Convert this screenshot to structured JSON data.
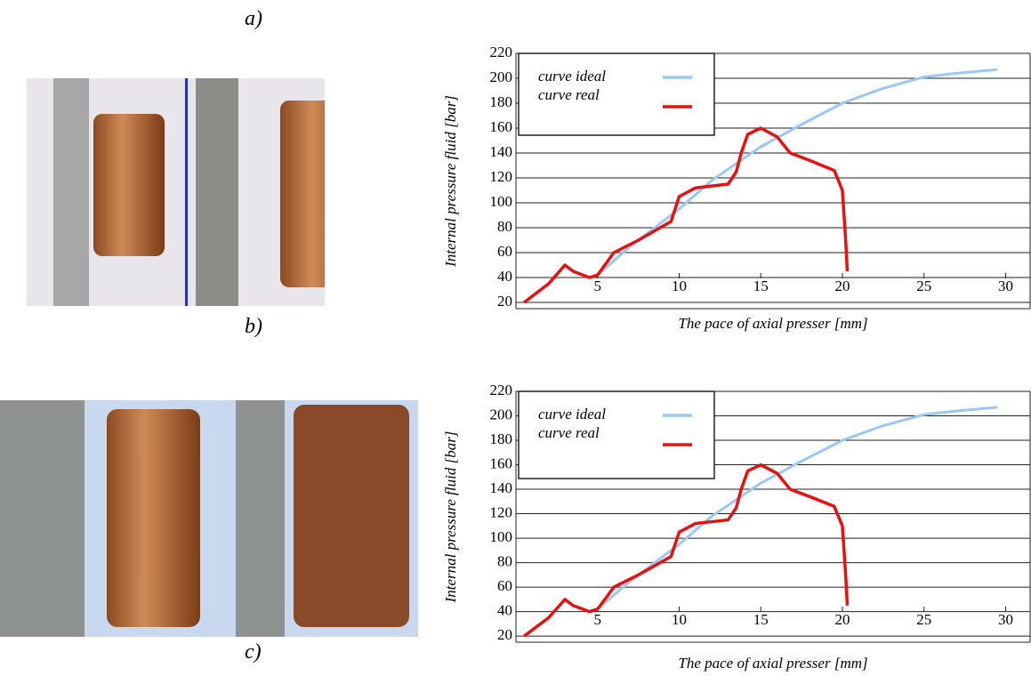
{
  "labels": [
    "a)",
    "b)",
    "c)"
  ],
  "chart_data": [
    {
      "type": "line",
      "ylabel": "Internal pressure fluid [bar]",
      "xlabel": "The pace of axial presser [mm]",
      "xlim": [
        0,
        31.5
      ],
      "ylim": [
        15,
        220
      ],
      "xticks": [
        5,
        10,
        15,
        20,
        25,
        30
      ],
      "yticks": [
        20,
        40,
        60,
        80,
        100,
        120,
        140,
        160,
        180,
        200,
        220
      ],
      "grid": true,
      "legend": "upper-left",
      "series": [
        {
          "name": "curve ideal",
          "color": "#99c8f5",
          "x": [
            5,
            7,
            10,
            12,
            15,
            17.5,
            20,
            22.5,
            25,
            27,
            29.5
          ],
          "values": [
            42,
            65,
            95,
            118,
            145,
            163,
            180,
            192,
            201,
            204,
            207
          ]
        },
        {
          "name": "curve real",
          "color": "#e81010",
          "x": [
            0.5,
            2,
            3,
            3.5,
            4.5,
            5,
            6,
            7.5,
            9.5,
            10,
            11,
            13,
            13.5,
            13.8,
            14.2,
            15,
            16,
            16.8,
            18,
            19.5,
            20,
            20.2,
            20.3
          ],
          "values": [
            20,
            35,
            50,
            45,
            40,
            42,
            60,
            70,
            85,
            105,
            112,
            115,
            125,
            140,
            155,
            160,
            153,
            140,
            134,
            126,
            110,
            70,
            45
          ]
        }
      ]
    },
    {
      "type": "line",
      "ylabel": "Internal pressure fluid [bar]",
      "xlabel": "The pace of axial presser [mm]",
      "xlim": [
        0,
        31.5
      ],
      "ylim": [
        15,
        220
      ],
      "xticks": [
        5,
        10,
        15,
        20,
        25,
        30
      ],
      "yticks": [
        20,
        40,
        60,
        80,
        100,
        120,
        140,
        160,
        180,
        200,
        220
      ],
      "grid": true,
      "legend": "upper-left",
      "series": [
        {
          "name": "curve ideal",
          "color": "#99c8f5",
          "x": [
            5,
            7,
            10,
            12,
            15,
            17.5,
            20,
            22.5,
            25,
            27,
            29.5
          ],
          "values": [
            42,
            65,
            95,
            118,
            145,
            163,
            180,
            192,
            201,
            204,
            207
          ]
        },
        {
          "name": "curve real",
          "color": "#e81010",
          "x": [
            0.5,
            2,
            3,
            3.5,
            4.5,
            5,
            6,
            7.5,
            9.5,
            10,
            11,
            13,
            13.5,
            13.8,
            14.2,
            15,
            16,
            16.8,
            18,
            19.5,
            20,
            20.2,
            20.3
          ],
          "values": [
            20,
            35,
            50,
            45,
            40,
            42,
            60,
            70,
            85,
            105,
            112,
            115,
            125,
            140,
            155,
            160,
            153,
            140,
            134,
            126,
            110,
            70,
            45
          ]
        }
      ]
    }
  ]
}
